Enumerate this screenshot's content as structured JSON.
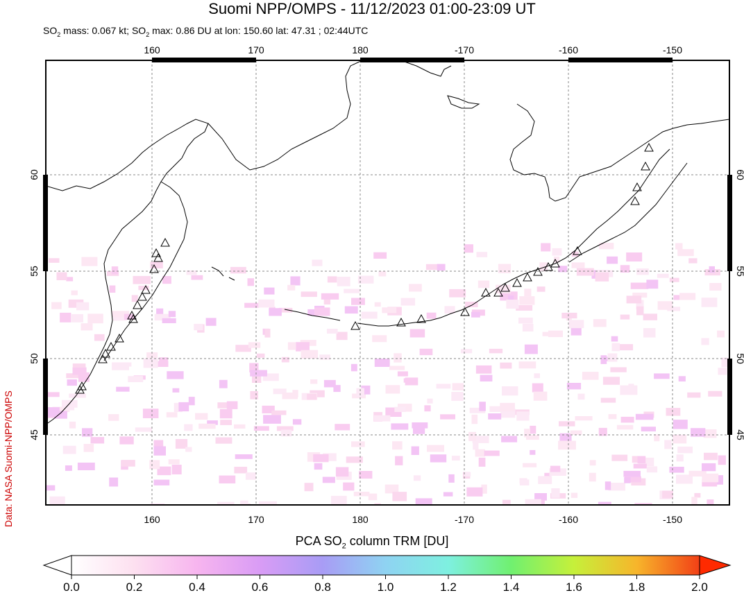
{
  "header": {
    "title": "Suomi NPP/OMPS - 11/12/2023 01:00-23:09 UT",
    "subtitle_p1": "SO",
    "subtitle_p2": "2",
    "subtitle_p3": " mass: 0.067 kt; SO",
    "subtitle_p4": "2",
    "subtitle_p5": " max: 0.86 DU at lon: 150.60 lat: 47.31 ; 02:44UTC"
  },
  "credit": "Data: NASA Suomi-NPP/OMPS",
  "map": {
    "lon_labels": [
      "160",
      "170",
      "180",
      "-170",
      "-160",
      "-150"
    ],
    "lat_labels": [
      "60",
      "55",
      "50",
      "45"
    ],
    "volcano_marker_icon": "triangle-icon"
  },
  "colorbar": {
    "title_p1": "PCA SO",
    "title_p2": "2",
    "title_p3": " column TRM [DU]",
    "ticks": [
      "0.0",
      "0.2",
      "0.4",
      "0.6",
      "0.8",
      "1.0",
      "1.2",
      "1.4",
      "1.6",
      "1.8",
      "2.0"
    ],
    "colors": [
      "#ffffff",
      "#fde0f0",
      "#f7b5ef",
      "#d99cf5",
      "#a89cf5",
      "#8fd3f2",
      "#7ef0e0",
      "#70f070",
      "#c6f03a",
      "#f7b52b",
      "#f24016"
    ],
    "over_color": "#ff2a00",
    "under_color": "#ffffff"
  }
}
